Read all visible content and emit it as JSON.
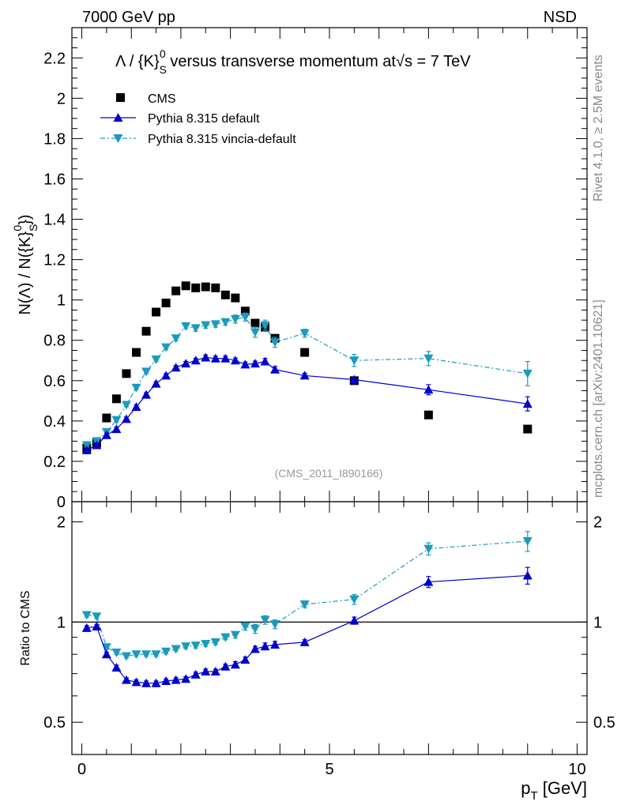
{
  "header": {
    "left": "7000 GeV pp",
    "right": "NSD"
  },
  "side_labels": {
    "rivet": "Rivet 4.1.0, ≥ 2.5M events",
    "mcplots": "mcplots.cern.ch [arXiv:2401.10621]"
  },
  "watermark": "(CMS_2011_I890166)",
  "colors": {
    "cms": "#000000",
    "default": "#0000cc",
    "vincia": "#1a9bbd"
  },
  "chart_data": [
    {
      "type": "scatter",
      "title_parts": {
        "main": "Λ / {K}",
        "sup": "0",
        "sub": "S",
        "rest": " versus transverse momentum at",
        "sqrt": "√s",
        "tail": " = 7 TeV"
      },
      "ylabel_parts": {
        "a": "N(Λ)  /  N({K}",
        "sup": "0",
        "sub": "S",
        "close": "})"
      },
      "xlim": [
        -0.2,
        10.2
      ],
      "ylim": [
        0,
        2.35
      ],
      "yticks": [
        0,
        0.2,
        0.4,
        0.6,
        0.8,
        1,
        1.2,
        1.4,
        1.6,
        1.8,
        2,
        2.2
      ],
      "ytick_labels": [
        "0",
        "0.2",
        "0.4",
        "0.6",
        "0.8",
        "1",
        "1.2",
        "1.4",
        "1.6",
        "1.8",
        "2",
        "2.2"
      ],
      "legend": [
        "CMS",
        "Pythia 8.315 default",
        "Pythia 8.315 vincia-default"
      ],
      "legend_position": "top-left",
      "series": [
        {
          "name": "CMS",
          "marker": "square",
          "x": [
            0.1,
            0.3,
            0.5,
            0.7,
            0.9,
            1.1,
            1.3,
            1.5,
            1.7,
            1.9,
            2.1,
            2.3,
            2.5,
            2.7,
            2.9,
            3.1,
            3.3,
            3.5,
            3.7,
            3.9,
            4.5,
            5.5,
            7.0,
            9.0
          ],
          "y": [
            0.265,
            0.29,
            0.415,
            0.51,
            0.635,
            0.74,
            0.845,
            0.94,
            0.985,
            1.045,
            1.07,
            1.06,
            1.065,
            1.06,
            1.025,
            1.01,
            0.945,
            0.885,
            0.865,
            0.81,
            0.74,
            0.6,
            0.43,
            0.36
          ]
        },
        {
          "name": "Pythia 8.315 default",
          "marker": "triangle-up",
          "x": [
            0.1,
            0.3,
            0.5,
            0.7,
            0.9,
            1.1,
            1.3,
            1.5,
            1.7,
            1.9,
            2.1,
            2.3,
            2.5,
            2.7,
            2.9,
            3.1,
            3.3,
            3.5,
            3.7,
            3.9,
            4.5,
            5.5,
            7.0,
            9.0
          ],
          "y": [
            0.255,
            0.28,
            0.33,
            0.36,
            0.41,
            0.47,
            0.53,
            0.585,
            0.625,
            0.665,
            0.685,
            0.7,
            0.715,
            0.71,
            0.71,
            0.7,
            0.68,
            0.685,
            0.695,
            0.655,
            0.625,
            0.605,
            0.555,
            0.485
          ],
          "err": [
            0.01,
            0.01,
            0.01,
            0.01,
            0.01,
            0.01,
            0.01,
            0.01,
            0.01,
            0.01,
            0.01,
            0.01,
            0.012,
            0.012,
            0.012,
            0.012,
            0.012,
            0.012,
            0.015,
            0.015,
            0.012,
            0.012,
            0.025,
            0.035
          ]
        },
        {
          "name": "Pythia 8.315 vincia-default",
          "marker": "triangle-down",
          "x": [
            0.1,
            0.3,
            0.5,
            0.7,
            0.9,
            1.1,
            1.3,
            1.5,
            1.7,
            1.9,
            2.1,
            2.3,
            2.5,
            2.7,
            2.9,
            3.1,
            3.3,
            3.5,
            3.7,
            3.9,
            4.5,
            5.5,
            7.0,
            9.0
          ],
          "y": [
            0.28,
            0.3,
            0.345,
            0.405,
            0.48,
            0.565,
            0.645,
            0.705,
            0.765,
            0.81,
            0.87,
            0.86,
            0.875,
            0.88,
            0.89,
            0.905,
            0.915,
            0.84,
            0.875,
            0.79,
            0.835,
            0.7,
            0.71,
            0.635
          ],
          "err": [
            0.01,
            0.01,
            0.01,
            0.01,
            0.01,
            0.01,
            0.01,
            0.01,
            0.012,
            0.012,
            0.012,
            0.015,
            0.015,
            0.015,
            0.015,
            0.02,
            0.02,
            0.025,
            0.025,
            0.025,
            0.02,
            0.03,
            0.035,
            0.06
          ]
        }
      ]
    },
    {
      "type": "scatter",
      "xlabel": "p",
      "xlabel_sub": "T",
      "xlabel_unit": " [GeV]",
      "ylabel": "Ratio to CMS",
      "xlim": [
        -0.2,
        10.2
      ],
      "ylim": [
        0.4,
        2.3
      ],
      "yscale": "log",
      "yticks": [
        0.5,
        1,
        2
      ],
      "ytick_labels": [
        "0.5",
        "1",
        "2"
      ],
      "xticks": [
        0,
        5,
        10
      ],
      "xtick_labels": [
        "0",
        "5",
        "10"
      ],
      "reference_line": 1,
      "series": [
        {
          "name": "Pythia 8.315 default",
          "marker": "triangle-up",
          "x": [
            0.1,
            0.3,
            0.5,
            0.7,
            0.9,
            1.1,
            1.3,
            1.5,
            1.7,
            1.9,
            2.1,
            2.3,
            2.5,
            2.7,
            2.9,
            3.1,
            3.3,
            3.5,
            3.7,
            3.9,
            4.5,
            5.5,
            7.0,
            9.0
          ],
          "y": [
            0.96,
            0.97,
            0.8,
            0.73,
            0.67,
            0.66,
            0.655,
            0.655,
            0.665,
            0.67,
            0.675,
            0.695,
            0.71,
            0.71,
            0.735,
            0.745,
            0.77,
            0.83,
            0.845,
            0.855,
            0.87,
            1.01,
            1.32,
            1.38
          ],
          "err": [
            0.015,
            0.015,
            0.012,
            0.012,
            0.01,
            0.01,
            0.01,
            0.01,
            0.01,
            0.01,
            0.01,
            0.012,
            0.012,
            0.012,
            0.012,
            0.015,
            0.015,
            0.015,
            0.02,
            0.02,
            0.015,
            0.025,
            0.05,
            0.08
          ]
        },
        {
          "name": "Pythia 8.315 vincia-default",
          "marker": "triangle-down",
          "x": [
            0.1,
            0.3,
            0.5,
            0.7,
            0.9,
            1.1,
            1.3,
            1.5,
            1.7,
            1.9,
            2.1,
            2.3,
            2.5,
            2.7,
            2.9,
            3.1,
            3.3,
            3.5,
            3.7,
            3.9,
            4.5,
            5.5,
            7.0,
            9.0
          ],
          "y": [
            1.05,
            1.04,
            0.84,
            0.81,
            0.79,
            0.8,
            0.8,
            0.8,
            0.815,
            0.83,
            0.845,
            0.85,
            0.86,
            0.87,
            0.9,
            0.915,
            0.97,
            0.955,
            1.015,
            0.985,
            1.13,
            1.17,
            1.66,
            1.75
          ],
          "err": [
            0.015,
            0.015,
            0.012,
            0.012,
            0.01,
            0.01,
            0.01,
            0.01,
            0.012,
            0.012,
            0.012,
            0.015,
            0.015,
            0.015,
            0.015,
            0.02,
            0.025,
            0.03,
            0.03,
            0.03,
            0.025,
            0.04,
            0.07,
            0.12
          ]
        }
      ]
    }
  ]
}
